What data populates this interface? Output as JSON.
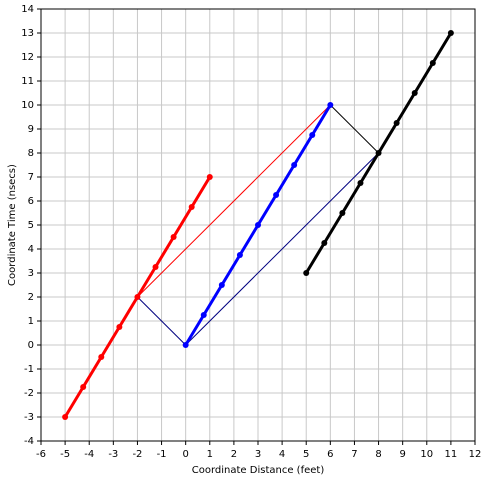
{
  "chart_data": {
    "type": "line",
    "xlabel": "Coordinate Distance (feet)",
    "ylabel": "Coordinate Time (nsecs)",
    "xlim": [
      -6,
      12
    ],
    "ylim": [
      -4,
      14
    ],
    "xticks": [
      -6,
      -5,
      -4,
      -3,
      -2,
      -1,
      0,
      1,
      2,
      3,
      4,
      5,
      6,
      7,
      8,
      9,
      10,
      11,
      12
    ],
    "yticks": [
      -4,
      -3,
      -2,
      -1,
      0,
      1,
      2,
      3,
      4,
      5,
      6,
      7,
      8,
      9,
      10,
      11,
      12,
      13,
      14
    ],
    "grid": true,
    "series": [
      {
        "color": "#ff0000",
        "line_width": 1,
        "markers": false,
        "x": [
          -2,
          6
        ],
        "values": [
          2,
          10
        ]
      },
      {
        "color": "#000080",
        "line_width": 1,
        "markers": false,
        "x": [
          -2,
          0
        ],
        "values": [
          2,
          0
        ]
      },
      {
        "color": "#000080",
        "line_width": 1,
        "markers": false,
        "x": [
          0,
          8
        ],
        "values": [
          0,
          8
        ]
      },
      {
        "color": "#000000",
        "line_width": 1,
        "markers": false,
        "x": [
          6,
          8
        ],
        "values": [
          10,
          8
        ]
      },
      {
        "color": "#ff0000",
        "line_width": 3,
        "markers": true,
        "x": [
          -5,
          -4.25,
          -3.5,
          -2.75,
          -2,
          -1.25,
          -0.5,
          0.25,
          1
        ],
        "values": [
          -3,
          -1.75,
          -0.5,
          0.75,
          2,
          3.25,
          4.5,
          5.75,
          7
        ]
      },
      {
        "color": "#0000ff",
        "line_width": 3,
        "markers": true,
        "x": [
          0,
          0.75,
          1.5,
          2.25,
          3,
          3.75,
          4.5,
          5.25,
          6
        ],
        "values": [
          0,
          1.25,
          2.5,
          3.75,
          5,
          6.25,
          7.5,
          8.75,
          10
        ]
      },
      {
        "color": "#000000",
        "line_width": 3,
        "markers": true,
        "x": [
          5,
          5.75,
          6.5,
          7.25,
          8,
          8.75,
          9.5,
          10.25,
          11
        ],
        "values": [
          3,
          4.25,
          5.5,
          6.75,
          8,
          9.25,
          10.5,
          11.75,
          13
        ]
      }
    ]
  }
}
